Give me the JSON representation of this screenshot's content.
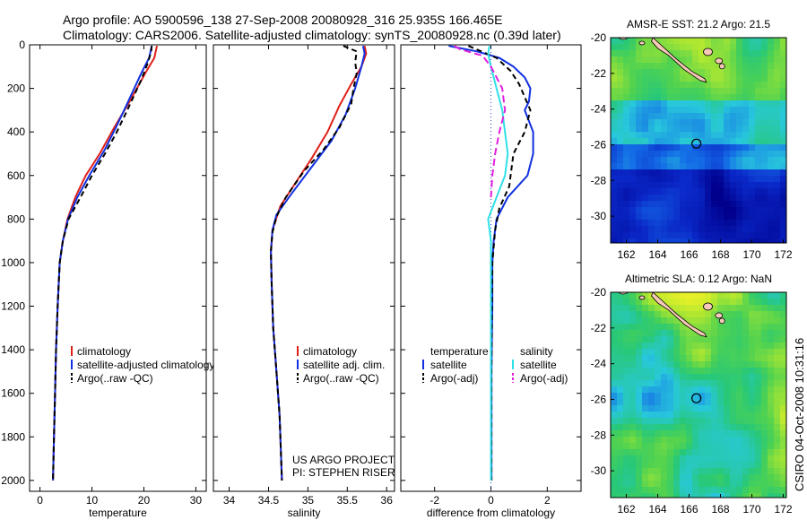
{
  "header": {
    "title_line1": "Argo profile: AO 5900596_138 27-Sep-2008 20080928_316 25.935S 166.465E",
    "title_line2": "Climatology: CARS2006. Satellite-adjusted climatology: synTS_20080928.nc (0.39d later)"
  },
  "credit": "CSIRO 04-Oct-2008 10:31:16",
  "colors": {
    "climatology": "#e0201a",
    "satellite": "#1030e0",
    "argo": "#000000",
    "sal_satellite": "#30e0e8",
    "sal_argo": "#e020e0"
  },
  "chart_data": [
    {
      "type": "line",
      "xlabel": "temperature",
      "ylabel": "",
      "xlim": [
        -2,
        32
      ],
      "ylim": [
        2050,
        0
      ],
      "y_inverted": true,
      "xticks": [
        0,
        10,
        20,
        30
      ],
      "yticks": [
        0,
        200,
        400,
        600,
        800,
        1000,
        1200,
        1400,
        1600,
        1800,
        2000
      ],
      "legend_position": "lower-center",
      "series": [
        {
          "name": "climatology",
          "color": "#e0201a",
          "dash": "",
          "points": [
            [
              22.5,
              5
            ],
            [
              22,
              60
            ],
            [
              20.5,
              120
            ],
            [
              17.5,
              250
            ],
            [
              14.3,
              380
            ],
            [
              11.5,
              500
            ],
            [
              8.8,
              600
            ],
            [
              6.8,
              700
            ],
            [
              5.3,
              800
            ],
            [
              4.4,
              900
            ],
            [
              3.8,
              1000
            ],
            [
              3.4,
              1200
            ],
            [
              3.1,
              1400
            ],
            [
              2.9,
              1600
            ],
            [
              2.7,
              1800
            ],
            [
              2.5,
              2000
            ]
          ]
        },
        {
          "name": "satellite-adjusted climatology",
          "color": "#1030e0",
          "dash": "",
          "points": [
            [
              21.5,
              5
            ],
            [
              21,
              60
            ],
            [
              19.5,
              130
            ],
            [
              16.8,
              270
            ],
            [
              14.6,
              380
            ],
            [
              12.5,
              480
            ],
            [
              9.5,
              600
            ],
            [
              7.2,
              700
            ],
            [
              5.4,
              800
            ],
            [
              4.4,
              900
            ],
            [
              3.8,
              1000
            ],
            [
              3.4,
              1200
            ],
            [
              3.1,
              1400
            ],
            [
              2.9,
              1600
            ],
            [
              2.7,
              1800
            ],
            [
              2.5,
              2000
            ]
          ]
        },
        {
          "name": "Argo(..raw -QC)",
          "color": "#000000",
          "dash": "6,4",
          "points": [
            [
              21.5,
              5
            ],
            [
              21.4,
              30
            ],
            [
              20.8,
              80
            ],
            [
              19.5,
              160
            ],
            [
              17,
              290
            ],
            [
              14.8,
              400
            ],
            [
              12.5,
              500
            ],
            [
              10,
              600
            ],
            [
              7.8,
              700
            ],
            [
              5.5,
              800
            ],
            [
              4.4,
              900
            ],
            [
              3.8,
              1000
            ],
            [
              3.4,
              1200
            ],
            [
              3.1,
              1400
            ],
            [
              2.9,
              1600
            ],
            [
              2.7,
              1800
            ],
            [
              2.5,
              2000
            ]
          ]
        }
      ]
    },
    {
      "type": "line",
      "xlabel": "salinity",
      "ylabel": "",
      "xlim": [
        33.8,
        36.1
      ],
      "ylim": [
        2050,
        0
      ],
      "y_inverted": true,
      "xticks": [
        34,
        34.5,
        35,
        35.5,
        36
      ],
      "legend_position": "lower-center",
      "series": [
        {
          "name": "climatology",
          "color": "#e0201a",
          "dash": "",
          "points": [
            [
              35.72,
              5
            ],
            [
              35.74,
              40
            ],
            [
              35.68,
              100
            ],
            [
              35.55,
              180
            ],
            [
              35.4,
              280
            ],
            [
              35.25,
              400
            ],
            [
              35.05,
              520
            ],
            [
              34.85,
              630
            ],
            [
              34.65,
              740
            ],
            [
              34.55,
              850
            ],
            [
              34.53,
              950
            ],
            [
              34.54,
              1100
            ],
            [
              34.56,
              1300
            ],
            [
              34.6,
              1500
            ],
            [
              34.64,
              1700
            ],
            [
              34.67,
              2000
            ]
          ]
        },
        {
          "name": "satellite adj. clim.",
          "color": "#1030e0",
          "dash": "",
          "points": [
            [
              35.7,
              5
            ],
            [
              35.72,
              40
            ],
            [
              35.68,
              100
            ],
            [
              35.6,
              200
            ],
            [
              35.48,
              320
            ],
            [
              35.3,
              440
            ],
            [
              35.05,
              560
            ],
            [
              34.8,
              680
            ],
            [
              34.6,
              780
            ],
            [
              34.55,
              850
            ],
            [
              34.53,
              950
            ],
            [
              34.54,
              1100
            ],
            [
              34.56,
              1300
            ],
            [
              34.6,
              1500
            ],
            [
              34.64,
              1700
            ],
            [
              34.67,
              2000
            ]
          ]
        },
        {
          "name": "Argo(..raw -QC)",
          "color": "#000000",
          "dash": "6,4",
          "points": [
            [
              35.45,
              5
            ],
            [
              35.62,
              30
            ],
            [
              35.6,
              80
            ],
            [
              35.62,
              130
            ],
            [
              35.58,
              200
            ],
            [
              35.55,
              270
            ],
            [
              35.4,
              380
            ],
            [
              35.2,
              480
            ],
            [
              34.95,
              580
            ],
            [
              34.72,
              700
            ],
            [
              34.6,
              790
            ],
            [
              34.55,
              860
            ],
            [
              34.53,
              950
            ],
            [
              34.54,
              1100
            ],
            [
              34.56,
              1300
            ],
            [
              34.6,
              1500
            ],
            [
              34.64,
              1700
            ],
            [
              34.67,
              2000
            ]
          ]
        }
      ]
    },
    {
      "type": "line",
      "xlabel": "difference from climatology",
      "ylabel": "",
      "xlim": [
        -3.2,
        3.2
      ],
      "ylim": [
        2050,
        0
      ],
      "y_inverted": true,
      "xticks": [
        -2,
        0,
        2
      ],
      "legend_position": "lower-center",
      "legend_groups": [
        "temperature",
        "salinity"
      ],
      "series": [
        {
          "name": "satellite",
          "group": "temperature",
          "color": "#1030e0",
          "dash": "",
          "points": [
            [
              -1.5,
              5
            ],
            [
              -0.5,
              30
            ],
            [
              0.3,
              60
            ],
            [
              0.8,
              100
            ],
            [
              1.2,
              150
            ],
            [
              1.4,
              200
            ],
            [
              1.35,
              260
            ],
            [
              1.2,
              300
            ],
            [
              1.5,
              400
            ],
            [
              1.5,
              500
            ],
            [
              1.3,
              600
            ],
            [
              0.6,
              700
            ],
            [
              0.2,
              800
            ],
            [
              0.1,
              900
            ],
            [
              0.05,
              1000
            ],
            [
              0.05,
              1200
            ],
            [
              0.02,
              1500
            ],
            [
              0.02,
              2000
            ]
          ]
        },
        {
          "name": "Argo(-adj)",
          "group": "temperature",
          "color": "#000000",
          "dash": "6,4",
          "points": [
            [
              -0.8,
              5
            ],
            [
              0.2,
              60
            ],
            [
              0.7,
              120
            ],
            [
              1.0,
              180
            ],
            [
              1.4,
              300
            ],
            [
              1.2,
              400
            ],
            [
              0.8,
              500
            ],
            [
              0.65,
              650
            ],
            [
              0.3,
              750
            ],
            [
              0.15,
              850
            ],
            [
              0.05,
              1000
            ],
            [
              0.02,
              1500
            ],
            [
              0.02,
              2000
            ]
          ]
        },
        {
          "name": "satellite",
          "group": "salinity",
          "color": "#30e0e8",
          "dash": "",
          "points": [
            [
              -0.05,
              5
            ],
            [
              -0.1,
              40
            ],
            [
              0.0,
              100
            ],
            [
              0.2,
              200
            ],
            [
              0.4,
              300
            ],
            [
              0.5,
              400
            ],
            [
              0.6,
              500
            ],
            [
              0.5,
              600
            ],
            [
              0.2,
              700
            ],
            [
              -0.1,
              800
            ],
            [
              0.0,
              900
            ],
            [
              0.0,
              1000
            ],
            [
              0.0,
              1500
            ],
            [
              0.0,
              2000
            ]
          ]
        },
        {
          "name": "Argo(-adj)",
          "group": "salinity",
          "color": "#e020e0",
          "dash": "8,4",
          "points": [
            [
              -1.3,
              5
            ],
            [
              -1.1,
              20
            ],
            [
              -0.3,
              50
            ],
            [
              0.0,
              100
            ],
            [
              0.4,
              200
            ],
            [
              0.5,
              300
            ],
            [
              0.3,
              400
            ],
            [
              0.15,
              500
            ],
            [
              0.05,
              600
            ],
            [
              0.0,
              700
            ]
          ]
        }
      ]
    },
    {
      "type": "heatmap",
      "title": "AMSR-E SST: 21.2 Argo: 21.5",
      "xlim": [
        161,
        172.2
      ],
      "ylim": [
        -31.5,
        -20
      ],
      "xticks": [
        162,
        164,
        166,
        168,
        170,
        172
      ],
      "yticks": [
        -20,
        -22,
        -24,
        -26,
        -28,
        -30
      ],
      "marker": {
        "lon": 166.465,
        "lat": -25.935
      }
    },
    {
      "type": "heatmap",
      "title": "Altimetric SLA: 0.12 Argo: NaN",
      "xlim": [
        161,
        172.2
      ],
      "ylim": [
        -31.5,
        -20
      ],
      "xticks": [
        162,
        164,
        166,
        168,
        170,
        172
      ],
      "yticks": [
        -20,
        -22,
        -24,
        -26,
        -28,
        -30
      ],
      "marker": {
        "lon": 166.465,
        "lat": -25.935
      }
    }
  ],
  "annotations": {
    "project_line1": "US ARGO PROJECT",
    "project_line2": "PI: STEPHEN RISER"
  }
}
